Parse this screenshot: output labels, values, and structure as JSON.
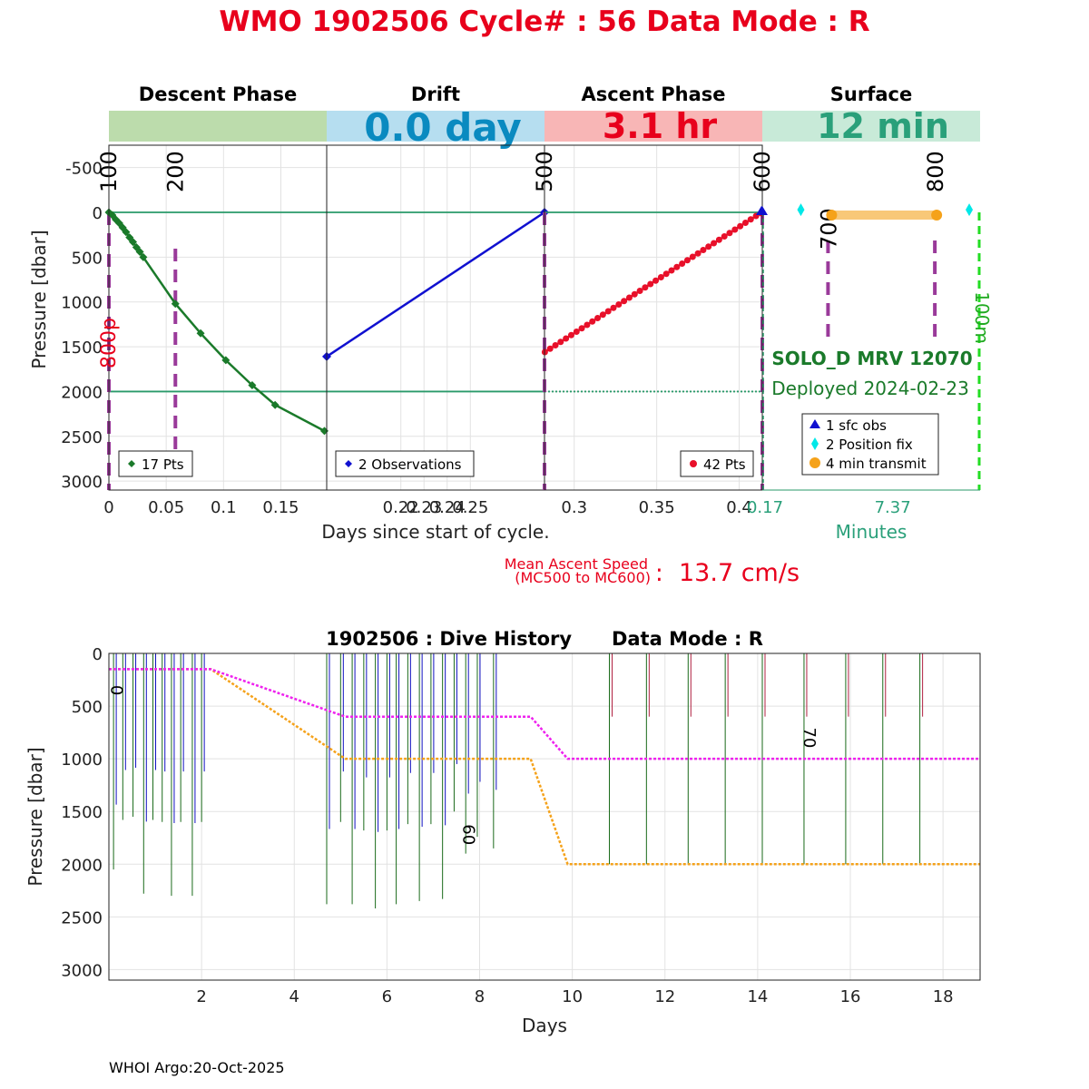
{
  "title": "WMO 1902506   Cycle# : 56   Data Mode : R",
  "colors": {
    "title": "#e8001c",
    "descent_band": "#bcdcac",
    "drift_band": "#b6def0",
    "ascent_band": "#f8b6b6",
    "surface_band": "#c8ead8",
    "drift_value": "#0a8ac0",
    "ascent_value": "#e8001c",
    "surface_value": "#2aa07a",
    "descent_series": "#1a7a2a",
    "drift_series": "#1010d0",
    "ascent_series": "#e8102a",
    "milestone": "#9a3a9a",
    "ref_line": "#2a9a6a",
    "transmit": "#f5a21a",
    "position_fix": "#00e8e8",
    "surface_edge": "#22dd22",
    "float_info": "#1a7a2a",
    "park_history": "#ee22ee",
    "profile_history": "#f5a21a"
  },
  "phases": [
    {
      "key": "descent",
      "label": "Descent Phase",
      "value": ""
    },
    {
      "key": "drift",
      "label": "Drift",
      "value": "0.0 day"
    },
    {
      "key": "ascent",
      "label": "Ascent Phase",
      "value": "3.1 hr"
    },
    {
      "key": "surface",
      "label": "Surface",
      "value": "12 min"
    }
  ],
  "ylabel_top": "Pressure [dbar]",
  "xlabel_top": "Days since start of cycle.",
  "xlabel_minutes": "Minutes",
  "marker_800p": "800p",
  "marker_100m": "100m",
  "float_name": "SOLO_D MRV 12070",
  "deployed": "Deployed 2024-02-23",
  "legends": {
    "descent": "17 Pts",
    "drift": "2 Observations",
    "ascent": "42 Pts",
    "surface": [
      "1 sfc obs",
      "2 Position fix",
      "4 min transmit"
    ]
  },
  "mean_ascent": {
    "label_line1": "Mean Ascent Speed",
    "label_line2": "(MC500 to MC600)",
    "colon": ":",
    "value": "13.7 cm/s"
  },
  "history_title": "1902506 : Dive History      Data Mode : R",
  "history_xlabel": "Days",
  "history_ylabel": "Pressure [dbar]",
  "footer": "WHOI Argo:20-Oct-2025",
  "chart_data": [
    {
      "type": "line",
      "panel": "descent",
      "title": "Descent Phase",
      "ylabel": "Pressure [dbar]",
      "xlim": [
        0,
        0.19
      ],
      "ylim": [
        -750,
        3100
      ],
      "y_reversed": true,
      "xticks": [
        0,
        0.05,
        0.1,
        0.15
      ],
      "xtick_labels": [
        "0",
        "0.05",
        "0.1",
        "0.15"
      ],
      "yticks": [
        -500,
        0,
        500,
        1000,
        1500,
        2000,
        2500,
        3000
      ],
      "ytick_labels": [
        "-500",
        "0",
        "500",
        "1000",
        "1500",
        "2000",
        "2500",
        "3000"
      ],
      "reference_lines": [
        0,
        2000
      ],
      "milestones": [
        {
          "label": "100",
          "x": 0
        },
        {
          "label": "200",
          "x": 0.058
        }
      ],
      "series": [
        {
          "name": "17 Pts",
          "points": [
            [
              0,
              0
            ],
            [
              0.003,
              30
            ],
            [
              0.006,
              80
            ],
            [
              0.009,
              120
            ],
            [
              0.012,
              170
            ],
            [
              0.015,
              220
            ],
            [
              0.018,
              280
            ],
            [
              0.021,
              330
            ],
            [
              0.024,
              390
            ],
            [
              0.027,
              440
            ],
            [
              0.03,
              500
            ],
            [
              0.058,
              1020
            ],
            [
              0.08,
              1350
            ],
            [
              0.102,
              1650
            ],
            [
              0.125,
              1930
            ],
            [
              0.145,
              2150
            ],
            [
              0.188,
              2440
            ]
          ]
        }
      ]
    },
    {
      "type": "line",
      "panel": "drift",
      "title": "Drift",
      "xlim": [
        0.188,
        0.282
      ],
      "ylim": [
        -750,
        3100
      ],
      "y_reversed": true,
      "xticks": [
        0.22,
        0.23,
        0.24,
        0.25
      ],
      "xtick_labels": [
        "0.22",
        "0.23",
        "0.24",
        "0.25"
      ],
      "reference_lines": [
        0,
        2000
      ],
      "series": [
        {
          "name": "2 Observations",
          "points": [
            [
              0.188,
              1610
            ],
            [
              0.282,
              0
            ]
          ]
        }
      ]
    },
    {
      "type": "line",
      "panel": "ascent",
      "title": "Ascent Phase",
      "xlim": [
        0.282,
        0.414
      ],
      "ylim": [
        -750,
        3100
      ],
      "y_reversed": true,
      "xticks": [
        0.3,
        0.35,
        0.4
      ],
      "xtick_labels": [
        "0.3",
        "0.35",
        "0.4"
      ],
      "reference_lines": [
        0,
        2000
      ],
      "milestones": [
        {
          "label": "500",
          "x": 0.282
        },
        {
          "label": "600",
          "x": 0.414
        }
      ],
      "series": [
        {
          "name": "42 Pts",
          "points": [
            [
              0.2822,
              1560
            ],
            [
              0.2854,
              1522
            ],
            [
              0.2886,
              1484
            ],
            [
              0.2918,
              1446
            ],
            [
              0.295,
              1408
            ],
            [
              0.2982,
              1370
            ],
            [
              0.3014,
              1332
            ],
            [
              0.3046,
              1294
            ],
            [
              0.3078,
              1256
            ],
            [
              0.311,
              1218
            ],
            [
              0.3142,
              1180
            ],
            [
              0.3174,
              1142
            ],
            [
              0.3206,
              1104
            ],
            [
              0.3238,
              1066
            ],
            [
              0.327,
              1028
            ],
            [
              0.3302,
              990
            ],
            [
              0.3334,
              952
            ],
            [
              0.3366,
              914
            ],
            [
              0.3398,
              876
            ],
            [
              0.343,
              838
            ],
            [
              0.3462,
              800
            ],
            [
              0.3494,
              762
            ],
            [
              0.3526,
              724
            ],
            [
              0.3558,
              686
            ],
            [
              0.359,
              648
            ],
            [
              0.3622,
              610
            ],
            [
              0.3654,
              572
            ],
            [
              0.3686,
              534
            ],
            [
              0.3718,
              496
            ],
            [
              0.375,
              458
            ],
            [
              0.3782,
              420
            ],
            [
              0.3814,
              382
            ],
            [
              0.3846,
              344
            ],
            [
              0.3878,
              306
            ],
            [
              0.391,
              268
            ],
            [
              0.3942,
              230
            ],
            [
              0.3974,
              192
            ],
            [
              0.4006,
              154
            ],
            [
              0.4038,
              116
            ],
            [
              0.407,
              78
            ],
            [
              0.4102,
              40
            ],
            [
              0.4134,
              10
            ]
          ]
        }
      ]
    },
    {
      "type": "scatter",
      "panel": "surface",
      "title": "Surface",
      "xlabel": "Minutes",
      "xlim": [
        0.17,
        12.2
      ],
      "ylim": [
        -750,
        3100
      ],
      "y_reversed": true,
      "xtick_labels": [
        "0.17",
        "7.37"
      ],
      "xticks": [
        0.17,
        7.37
      ],
      "milestones": [
        {
          "label": "700",
          "x": 3.8
        },
        {
          "label": "800",
          "x": 9.7
        }
      ],
      "series": [
        {
          "name": "1 sfc obs",
          "points": [
            [
              0.17,
              0
            ]
          ]
        },
        {
          "name": "2 Position fix",
          "points": [
            [
              2.3,
              -30
            ],
            [
              11.6,
              -30
            ]
          ]
        },
        {
          "name": "4 min transmit",
          "points": [
            [
              4.0,
              30
            ],
            [
              9.8,
              30
            ]
          ]
        }
      ]
    },
    {
      "type": "line",
      "panel": "history",
      "title": "1902506 : Dive History      Data Mode : R",
      "xlabel": "Days",
      "ylabel": "Pressure [dbar]",
      "xlim": [
        0,
        18.8
      ],
      "ylim": [
        0,
        3100
      ],
      "y_reversed": true,
      "xticks": [
        2,
        4,
        6,
        8,
        10,
        12,
        14,
        16,
        18
      ],
      "yticks": [
        0,
        500,
        1000,
        1500,
        2000,
        2500,
        3000
      ],
      "annotations": [
        {
          "label": "0",
          "x": 0.05,
          "y": 350
        },
        {
          "label": "60",
          "x": 7.65,
          "y": 1720
        },
        {
          "label": "70",
          "x": 15.0,
          "y": 800
        }
      ],
      "series": [
        {
          "name": "park_pressure",
          "points": [
            [
              0,
              150
            ],
            [
              2.2,
              150
            ],
            [
              5.1,
              600
            ],
            [
              9.1,
              600
            ],
            [
              9.9,
              1000
            ],
            [
              18.8,
              1000
            ]
          ]
        },
        {
          "name": "profile_pressure",
          "points": [
            [
              0,
              150
            ],
            [
              2.2,
              150
            ],
            [
              5.1,
              1000
            ],
            [
              9.1,
              1000
            ],
            [
              9.9,
              2000
            ],
            [
              18.8,
              2000
            ]
          ]
        },
        {
          "name": "dives",
          "points": [
            [
              0.1,
              2050
            ],
            [
              0.3,
              1580
            ],
            [
              0.52,
              1550
            ],
            [
              0.75,
              2280
            ],
            [
              0.95,
              1580
            ],
            [
              1.15,
              1600
            ],
            [
              1.35,
              2300
            ],
            [
              1.55,
              1600
            ],
            [
              1.8,
              2300
            ],
            [
              2.0,
              1600
            ],
            [
              4.7,
              2380
            ],
            [
              5.0,
              1600
            ],
            [
              5.25,
              2380
            ],
            [
              5.5,
              1680
            ],
            [
              5.75,
              2420
            ],
            [
              6.0,
              1680
            ],
            [
              6.2,
              2380
            ],
            [
              6.45,
              1620
            ],
            [
              6.7,
              2350
            ],
            [
              6.95,
              1620
            ],
            [
              7.2,
              2330
            ],
            [
              7.45,
              1500
            ],
            [
              7.7,
              1900
            ],
            [
              7.95,
              1740
            ],
            [
              8.3,
              1850
            ],
            [
              10.8,
              2000
            ],
            [
              11.6,
              2000
            ],
            [
              12.5,
              2000
            ],
            [
              13.3,
              2000
            ],
            [
              14.1,
              2000
            ],
            [
              15.0,
              2000
            ],
            [
              15.9,
              2000
            ],
            [
              16.7,
              2000
            ],
            [
              17.5,
              2000
            ]
          ]
        }
      ]
    }
  ]
}
